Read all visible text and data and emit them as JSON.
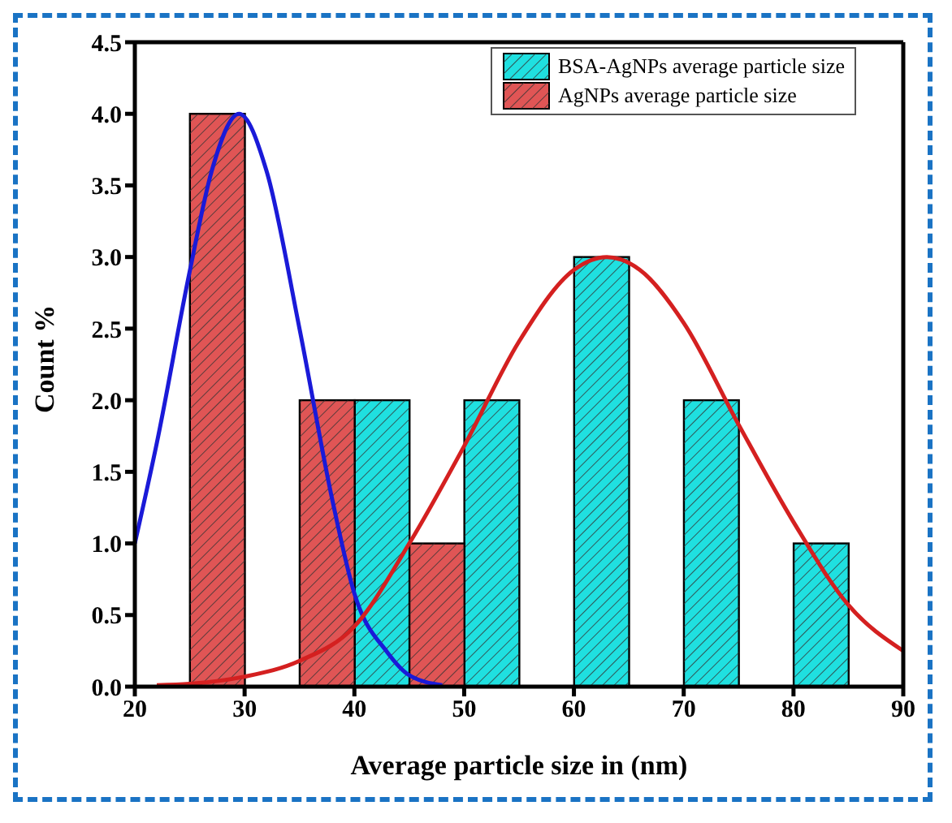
{
  "chart_data": {
    "type": "bar",
    "xlabel": "Average particle size in (nm)",
    "ylabel": "Count %",
    "x": [
      27.5,
      37.5,
      42.5,
      47.5,
      52.5,
      62.5,
      72.5,
      82.5
    ],
    "series": [
      {
        "name": "BSA-AgNPs average particle size",
        "color": "#1fe0e0",
        "values": [
          null,
          null,
          2,
          null,
          2,
          3,
          2,
          1
        ]
      },
      {
        "name": "AgNPs average particle size",
        "color": "#e05555",
        "values": [
          4,
          2,
          null,
          1,
          null,
          null,
          null,
          null
        ]
      },
      {
        "type": "line",
        "color": "#1a1ad8",
        "x": [
          20,
          22,
          25,
          27,
          29.5,
          32,
          35,
          38,
          40,
          43,
          45,
          48
        ],
        "values": [
          1.0,
          1.7,
          2.9,
          3.6,
          4.0,
          3.6,
          2.5,
          1.3,
          0.65,
          0.24,
          0.08,
          0.01
        ]
      },
      {
        "type": "line",
        "color": "#d42020",
        "x": [
          22,
          25,
          30,
          35,
          40,
          45,
          50,
          55,
          60,
          63,
          66,
          70,
          75,
          80,
          85,
          90
        ],
        "values": [
          0.01,
          0.02,
          0.07,
          0.18,
          0.42,
          1.0,
          1.68,
          2.41,
          2.91,
          3.0,
          2.91,
          2.54,
          1.83,
          1.15,
          0.57,
          0.25
        ]
      }
    ],
    "xlim": [
      20,
      90
    ],
    "xticks": [
      20,
      30,
      40,
      50,
      60,
      70,
      80,
      90
    ],
    "ylim": [
      0,
      4.5
    ],
    "yticks": [
      {
        "value": 0,
        "label": "0.0"
      },
      {
        "value": 0.5,
        "label": "0.5"
      },
      {
        "value": 1,
        "label": "1.0"
      },
      {
        "value": 1.5,
        "label": "1.5"
      },
      {
        "value": 2,
        "label": "2.0"
      },
      {
        "value": 2.5,
        "label": "2.5"
      },
      {
        "value": 3,
        "label": "3.0"
      },
      {
        "value": 3.5,
        "label": "3.5"
      },
      {
        "value": 4,
        "label": "4.0"
      },
      {
        "value": 4.5,
        "label": "4.5"
      }
    ],
    "legend": "top right",
    "grid": false
  }
}
